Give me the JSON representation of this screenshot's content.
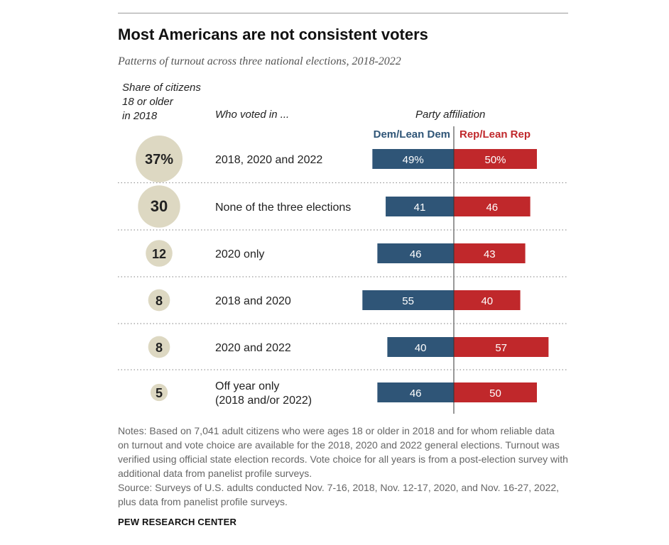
{
  "title": "Most Americans are not consistent voters",
  "subtitle": "Patterns of turnout across three national elections, 2018-2022",
  "columns": {
    "share_line1": "Share of citizens",
    "share_line2": "18 or older",
    "share_line3": "in 2018",
    "who_voted": "Who voted in ...",
    "party": "Party affiliation"
  },
  "legend": {
    "dem": "Dem/Lean Dem",
    "rep": "Rep/Lean Rep"
  },
  "colors": {
    "dem": "#2f5577",
    "rep": "#c0282b",
    "bubble": "#ddd8c2"
  },
  "chart_data": {
    "type": "bar",
    "categories": [
      [
        "2018, 2020 and 2022"
      ],
      [
        "None of the three elections"
      ],
      [
        "2020 only"
      ],
      [
        "2018 and 2020"
      ],
      [
        "2020 and 2022"
      ],
      [
        "Off year only",
        "(2018 and/or 2022)"
      ]
    ],
    "share": [
      37,
      30,
      12,
      8,
      8,
      5
    ],
    "share_labels": [
      "37%",
      "30",
      "12",
      "8",
      "8",
      "5"
    ],
    "series": [
      {
        "name": "Dem/Lean Dem",
        "values": [
          49,
          41,
          46,
          55,
          40,
          46
        ],
        "labels": [
          "49%",
          "41",
          "46",
          "55",
          "40",
          "46"
        ]
      },
      {
        "name": "Rep/Lean Rep",
        "values": [
          50,
          46,
          43,
          40,
          57,
          50
        ],
        "labels": [
          "50%",
          "46",
          "43",
          "40",
          "57",
          "50"
        ]
      }
    ],
    "xlim": [
      0,
      60
    ]
  },
  "notes": [
    "Notes: Based on 7,041 adult citizens who were ages 18 or older in 2018 and for whom reliable data on turnout and vote choice are available for the 2018, 2020 and 2022 general elections. Turnout was verified using official state election records. Vote choice for all years is from a post-election survey with additional data from panelist profile surveys.",
    "Source: Surveys of U.S. adults conducted Nov. 7-16, 2018, Nov. 12-17, 2020, and Nov. 16-27, 2022, plus data from panelist profile surveys."
  ],
  "brand": "PEW RESEARCH CENTER"
}
